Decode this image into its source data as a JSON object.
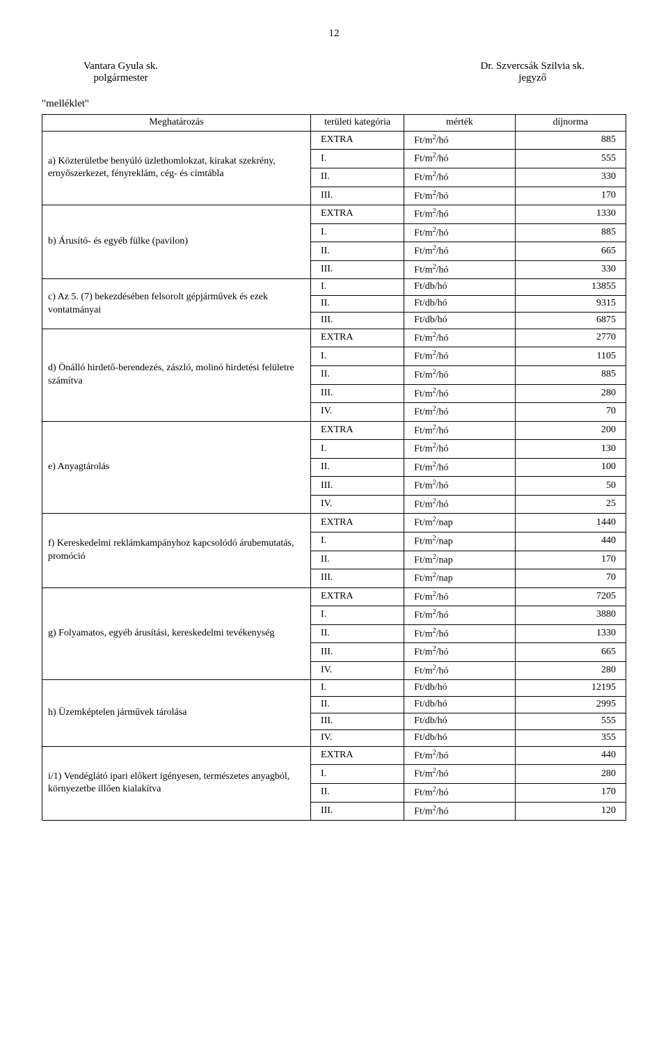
{
  "page_number": "12",
  "header": {
    "left_name": "Vantara Gyula sk.",
    "left_title": "polgármester",
    "right_name": "Dr. Szvercsák Szilvia sk.",
    "right_title": "jegyző"
  },
  "attachment_label": "\"melléklet\"",
  "columns": {
    "c1": "Meghatározás",
    "c2": "területi kategória",
    "c3": "mérték",
    "c4": "díjnorma"
  },
  "unit_m2ho": "Ft/m²/hó",
  "unit_dbho": "Ft/db/hó",
  "unit_m2nap": "Ft/m²/nap",
  "sections": [
    {
      "label": "a)  Közterületbe benyúló üzlethomlokzat, kirakat szekrény, ernyőszerkezet, fényreklám, cég- és címtábla",
      "rows": [
        {
          "cat": "EXTRA",
          "unit": "m2ho",
          "val": "885"
        },
        {
          "cat": "I.",
          "unit": "m2ho",
          "val": "555"
        },
        {
          "cat": "II.",
          "unit": "m2ho",
          "val": "330"
        },
        {
          "cat": "III.",
          "unit": "m2ho",
          "val": "170"
        }
      ]
    },
    {
      "label": "b)  Árusító- és egyéb fülke (pavilon)",
      "rows": [
        {
          "cat": "EXTRA",
          "unit": "m2ho",
          "val": "1330"
        },
        {
          "cat": "I.",
          "unit": "m2ho",
          "val": "885"
        },
        {
          "cat": "II.",
          "unit": "m2ho",
          "val": "665"
        },
        {
          "cat": "III.",
          "unit": "m2ho",
          "val": "330"
        }
      ]
    },
    {
      "label": "c)   Az 5. (7) bekezdésében felsorolt gépjárművek és ezek vontatmányai",
      "rows": [
        {
          "cat": "I.",
          "unit": "dbho",
          "val": "13855"
        },
        {
          "cat": "II.",
          "unit": "dbho",
          "val": "9315"
        },
        {
          "cat": "III.",
          "unit": "dbho",
          "val": "6875"
        }
      ]
    },
    {
      "label": "d)  Önálló hirdető-berendezés, zászló, molinó hirdetési felületre számítva",
      "rows": [
        {
          "cat": "EXTRA",
          "unit": "m2ho",
          "val": "2770"
        },
        {
          "cat": "I.",
          "unit": "m2ho",
          "val": "1105"
        },
        {
          "cat": "II.",
          "unit": "m2ho",
          "val": "885"
        },
        {
          "cat": "III.",
          "unit": "m2ho",
          "val": "280"
        },
        {
          "cat": "IV.",
          "unit": "m2ho",
          "val": "70"
        }
      ]
    },
    {
      "label": "e)  Anyagtárolás",
      "rows": [
        {
          "cat": "EXTRA",
          "unit": "m2ho",
          "val": "200"
        },
        {
          "cat": "I.",
          "unit": "m2ho",
          "val": "130"
        },
        {
          "cat": "II.",
          "unit": "m2ho",
          "val": "100"
        },
        {
          "cat": "III.",
          "unit": "m2ho",
          "val": "50"
        },
        {
          "cat": "IV.",
          "unit": "m2ho",
          "val": "25"
        }
      ]
    },
    {
      "label": "f)  Kereskedelmi reklámkampányhoz kapcsolódó árubemutatás, promóció",
      "rows": [
        {
          "cat": "EXTRA",
          "unit": "m2nap",
          "val": "1440"
        },
        {
          "cat": "I.",
          "unit": "m2nap",
          "val": "440"
        },
        {
          "cat": "II.",
          "unit": "m2nap",
          "val": "170"
        },
        {
          "cat": "III.",
          "unit": "m2nap",
          "val": "70"
        }
      ]
    },
    {
      "label": "g)  Folyamatos, egyéb árusítási, kereskedelmi tevékenység",
      "rows": [
        {
          "cat": "EXTRA",
          "unit": "m2ho",
          "val": "7205"
        },
        {
          "cat": "I.",
          "unit": "m2ho",
          "val": "3880"
        },
        {
          "cat": "II.",
          "unit": "m2ho",
          "val": "1330"
        },
        {
          "cat": "III.",
          "unit": "m2ho",
          "val": "665"
        },
        {
          "cat": "IV.",
          "unit": "m2ho",
          "val": "280"
        }
      ]
    },
    {
      "label": "h)  Üzemképtelen járművek tárolása",
      "rows": [
        {
          "cat": "I.",
          "unit": "dbho",
          "val": "12195"
        },
        {
          "cat": "II.",
          "unit": "dbho",
          "val": "2995"
        },
        {
          "cat": "III.",
          "unit": "dbho",
          "val": "555"
        },
        {
          "cat": "IV.",
          "unit": "dbho",
          "val": "355"
        }
      ]
    },
    {
      "label": "i/1) Vendéglátó ipari előkert igényesen, természetes anyagból, környezetbe illően kialakítva",
      "rows": [
        {
          "cat": "EXTRA",
          "unit": "m2ho",
          "val": "440"
        },
        {
          "cat": "I.",
          "unit": "m2ho",
          "val": "280"
        },
        {
          "cat": "II.",
          "unit": "m2ho",
          "val": "170"
        },
        {
          "cat": "III.",
          "unit": "m2ho",
          "val": "120"
        }
      ]
    }
  ]
}
